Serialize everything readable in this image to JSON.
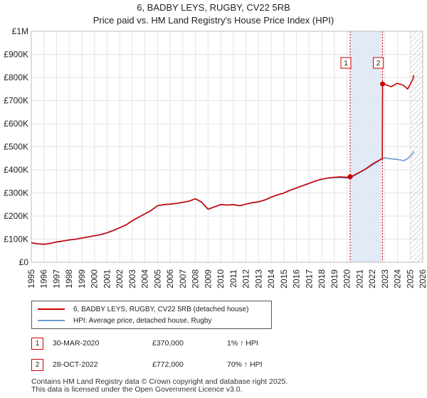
{
  "title": "6, BADBY LEYS, RUGBY, CV22 5RB",
  "subtitle": "Price paid vs. HM Land Registry's House Price Index (HPI)",
  "chart_data": {
    "type": "line",
    "xlim": [
      1995,
      2026
    ],
    "ylim": [
      0,
      1000000
    ],
    "x_ticks": [
      "1995",
      "1996",
      "1997",
      "1998",
      "1999",
      "2000",
      "2001",
      "2002",
      "2003",
      "2004",
      "2005",
      "2006",
      "2007",
      "2008",
      "2009",
      "2010",
      "2011",
      "2012",
      "2013",
      "2014",
      "2015",
      "2016",
      "2017",
      "2018",
      "2019",
      "2020",
      "2021",
      "2022",
      "2023",
      "2024",
      "2025",
      "2026"
    ],
    "y_ticks": [
      {
        "value": 0,
        "label": "£0"
      },
      {
        "value": 100000,
        "label": "£100K"
      },
      {
        "value": 200000,
        "label": "£200K"
      },
      {
        "value": 300000,
        "label": "£300K"
      },
      {
        "value": 400000,
        "label": "£400K"
      },
      {
        "value": 500000,
        "label": "£500K"
      },
      {
        "value": 600000,
        "label": "£600K"
      },
      {
        "value": 700000,
        "label": "£700K"
      },
      {
        "value": 800000,
        "label": "£800K"
      },
      {
        "value": 900000,
        "label": "£900K"
      },
      {
        "value": 1000000,
        "label": "£1M"
      }
    ],
    "shaded_period": [
      2020.25,
      2022.82
    ],
    "forecast_start": 2025.0,
    "series": [
      {
        "name": "6, BADBY LEYS, RUGBY, CV22 5RB (detached house)",
        "color": "#cc0000",
        "x": [
          1995.0,
          1995.5,
          1996.0,
          1996.5,
          1997.0,
          1997.5,
          1998.0,
          1998.5,
          1999.0,
          1999.5,
          2000.0,
          2000.5,
          2001.0,
          2001.5,
          2002.0,
          2002.5,
          2003.0,
          2003.5,
          2004.0,
          2004.5,
          2005.0,
          2005.5,
          2006.0,
          2006.5,
          2007.0,
          2007.5,
          2008.0,
          2008.5,
          2009.0,
          2009.5,
          2010.0,
          2010.5,
          2011.0,
          2011.5,
          2012.0,
          2012.5,
          2013.0,
          2013.5,
          2014.0,
          2014.5,
          2015.0,
          2015.5,
          2016.0,
          2016.5,
          2017.0,
          2017.5,
          2018.0,
          2018.5,
          2019.0,
          2019.5,
          2020.0,
          2020.25,
          2020.5,
          2021.0,
          2021.5,
          2022.0,
          2022.5,
          2022.8,
          2022.82,
          2023.0,
          2023.5,
          2024.0,
          2024.5,
          2024.8,
          2025.0,
          2025.2,
          2025.3
        ],
        "values": [
          85000,
          80000,
          78000,
          82000,
          88000,
          92000,
          97000,
          100000,
          105000,
          110000,
          115000,
          120000,
          128000,
          138000,
          150000,
          162000,
          180000,
          195000,
          210000,
          225000,
          245000,
          250000,
          252000,
          255000,
          260000,
          265000,
          275000,
          260000,
          230000,
          240000,
          250000,
          248000,
          250000,
          245000,
          252000,
          258000,
          262000,
          270000,
          282000,
          292000,
          300000,
          312000,
          322000,
          332000,
          342000,
          352000,
          360000,
          365000,
          368000,
          370000,
          368000,
          370000,
          375000,
          390000,
          405000,
          425000,
          440000,
          450000,
          772000,
          770000,
          760000,
          775000,
          765000,
          750000,
          770000,
          790000,
          810000
        ]
      },
      {
        "name": "HPI: Average price, detached house, Rugby",
        "color": "#6a9ad0",
        "x": [
          1995.0,
          1995.5,
          1996.0,
          1996.5,
          1997.0,
          1997.5,
          1998.0,
          1998.5,
          1999.0,
          1999.5,
          2000.0,
          2000.5,
          2001.0,
          2001.5,
          2002.0,
          2002.5,
          2003.0,
          2003.5,
          2004.0,
          2004.5,
          2005.0,
          2005.5,
          2006.0,
          2006.5,
          2007.0,
          2007.5,
          2008.0,
          2008.5,
          2009.0,
          2009.5,
          2010.0,
          2010.5,
          2011.0,
          2011.5,
          2012.0,
          2012.5,
          2013.0,
          2013.5,
          2014.0,
          2014.5,
          2015.0,
          2015.5,
          2016.0,
          2016.5,
          2017.0,
          2017.5,
          2018.0,
          2018.5,
          2019.0,
          2019.5,
          2020.0,
          2020.25,
          2020.5,
          2021.0,
          2021.5,
          2022.0,
          2022.5,
          2022.8,
          2023.0,
          2023.5,
          2024.0,
          2024.5,
          2024.8,
          2025.0,
          2025.2,
          2025.3
        ],
        "values": [
          84000,
          79000,
          77000,
          81000,
          87000,
          91000,
          96000,
          99000,
          104000,
          109000,
          114000,
          119000,
          127000,
          137000,
          149000,
          161000,
          179000,
          194000,
          209000,
          224000,
          244000,
          249000,
          251000,
          254000,
          259000,
          264000,
          274000,
          259000,
          229000,
          239000,
          249000,
          247000,
          249000,
          244000,
          251000,
          257000,
          261000,
          269000,
          281000,
          291000,
          299000,
          311000,
          321000,
          331000,
          341000,
          351000,
          359000,
          364000,
          366000,
          366000,
          364000,
          366000,
          372000,
          388000,
          403000,
          420000,
          438000,
          450000,
          452000,
          448000,
          445000,
          440000,
          448000,
          460000,
          470000,
          480000
        ]
      }
    ],
    "transactions": [
      {
        "label": "1",
        "x": 2020.25,
        "y": 370000,
        "date": "30-MAR-2020",
        "price": "£370,000",
        "hpi": "1% ↑ HPI"
      },
      {
        "label": "2",
        "x": 2022.82,
        "y": 772000,
        "date": "28-OCT-2022",
        "price": "£772,000",
        "hpi": "70% ↑ HPI"
      }
    ]
  },
  "legend": {
    "line1": "6, BADBY LEYS, RUGBY, CV22 5RB (detached house)",
    "line2": "HPI: Average price, detached house, Rugby"
  },
  "footer": {
    "line1": "Contains HM Land Registry data © Crown copyright and database right 2025.",
    "line2": "This data is licensed under the Open Government Licence v3.0."
  }
}
